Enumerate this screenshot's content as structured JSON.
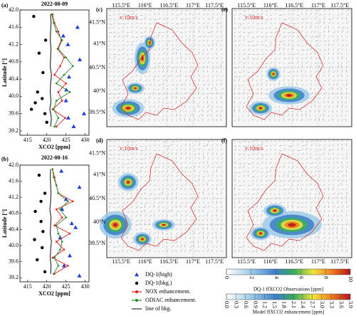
{
  "chart_data": [
    {
      "type": "line",
      "panel": "(a)",
      "title": "2022-08-09",
      "x_label": "XCO2 [ppm]",
      "y_label": "Latitude [°]",
      "xlim": [
        413,
        431
      ],
      "xticks": [
        415,
        420,
        425,
        430
      ],
      "ylim": [
        39.1,
        42.0
      ],
      "yticks": [
        {
          "value": 42,
          "label": "42.0"
        },
        41.6,
        41.2,
        40.8,
        40.4,
        {
          "value": 40,
          "label": "40.0"
        },
        39.6,
        39.2
      ],
      "series": [
        {
          "name": "DQ-1(high)",
          "color": "#1f3fd6",
          "marker": "triangle",
          "line": false,
          "x": [
            424.3,
            428,
            425.5,
            428.6,
            425.8,
            425.1,
            425,
            429.7,
            425.6,
            427
          ],
          "y": [
            41.4,
            41.6,
            41.2,
            40.85,
            40.45,
            40.15,
            39.9,
            39.6,
            39.5,
            39.3
          ]
        },
        {
          "name": "DQ-1(bkg.)",
          "color": "#000000",
          "marker": "circle",
          "line": false,
          "x": [
            416.6,
            418,
            419.7,
            417.6,
            419,
            417,
            416,
            419.5,
            420,
            418.8
          ],
          "y": [
            41.85,
            41.0,
            41.3,
            40.1,
            40.55,
            39.85,
            39.7,
            39.6,
            39.4,
            39.95
          ]
        },
        {
          "name": "NOX enhancement.",
          "color": "#e02020",
          "marker": "dot",
          "line": true,
          "x": [
            422.5,
            424.8,
            421.5,
            424.0,
            423.0,
            425.0,
            422.0,
            423.5,
            424.5,
            422.8,
            423.8,
            423.0,
            422.0,
            421.5
          ],
          "y": [
            39.3,
            39.5,
            39.7,
            39.9,
            40.1,
            40.3,
            40.5,
            40.7,
            40.9,
            41.1,
            41.3,
            41.5,
            41.7,
            41.9
          ]
        },
        {
          "name": "ODIAC enhancement.",
          "color": "#2a8a2a",
          "marker": "dot",
          "line": true,
          "x": [
            422.0,
            423.0,
            421.8,
            422.5,
            426.0,
            422.5,
            424.5,
            426.8,
            425.0,
            423.0,
            424.0,
            422.5,
            421.8,
            421.3
          ],
          "y": [
            39.3,
            39.5,
            39.7,
            39.9,
            40.1,
            40.3,
            40.5,
            40.7,
            40.9,
            41.1,
            41.3,
            41.5,
            41.7,
            41.9
          ]
        },
        {
          "name": "line of bkg.",
          "color": "#333333",
          "marker": "none",
          "line": true,
          "x": [
            421.0,
            421.2,
            420.8,
            421.1,
            420.9,
            421.0,
            421.2,
            420.9,
            421.0,
            421.1,
            420.9,
            421.0,
            421.1,
            421.0
          ],
          "y": [
            39.3,
            39.5,
            39.7,
            39.9,
            40.1,
            40.3,
            40.5,
            40.7,
            40.9,
            41.1,
            41.3,
            41.5,
            41.7,
            41.9
          ]
        }
      ]
    },
    {
      "type": "line",
      "panel": "(b)",
      "title": "2022-08-16",
      "x_label": "XCO2 [ppm]",
      "y_label": "Latitude [°]",
      "xlim": [
        413,
        431
      ],
      "xticks": [
        415,
        420,
        425,
        430
      ],
      "ylim": [
        39.1,
        42.0
      ],
      "yticks": [
        {
          "value": 42,
          "label": "42.0"
        },
        41.6,
        41.2,
        40.8,
        40.4,
        {
          "value": 40,
          "label": "40.0"
        },
        39.6,
        39.2
      ],
      "series": [
        {
          "name": "DQ-1(high)",
          "color": "#1f3fd6",
          "marker": "triangle",
          "line": false,
          "x": [
            428.5,
            424.5,
            426,
            423.5,
            427.5,
            426.5,
            424,
            425,
            428.5,
            423.8
          ],
          "y": [
            39.25,
            39.5,
            39.75,
            40.2,
            40.45,
            40.55,
            40.9,
            41.15,
            41.45,
            41.85
          ]
        },
        {
          "name": "DQ-1(bkg.)",
          "color": "#000000",
          "marker": "circle",
          "line": false,
          "x": [
            419.5,
            417.5,
            418.8,
            416.8,
            419.0,
            418.5,
            417,
            418.5,
            419.5,
            418
          ],
          "y": [
            39.35,
            39.65,
            39.95,
            40.15,
            40.35,
            40.6,
            40.85,
            41.1,
            41.3,
            41.75
          ]
        },
        {
          "name": "NOX enhancement.",
          "color": "#e02020",
          "marker": "dot",
          "line": true,
          "x": [
            422.0,
            425.5,
            421.5,
            424.5,
            422.5,
            426.0,
            422.0,
            424.0,
            422.5,
            426.8,
            423.0,
            422.5,
            422.0,
            421.5
          ],
          "y": [
            39.3,
            39.5,
            39.7,
            39.9,
            40.1,
            40.3,
            40.5,
            40.7,
            40.9,
            41.1,
            41.3,
            41.5,
            41.7,
            41.9
          ]
        },
        {
          "name": "ODIAC enhancement.",
          "color": "#2a8a2a",
          "marker": "dot",
          "line": true,
          "x": [
            421.8,
            423.0,
            422.0,
            423.5,
            424.0,
            423.0,
            422.5,
            425.0,
            423.5,
            425.5,
            423.0,
            422.5,
            421.8,
            421.5
          ],
          "y": [
            39.3,
            39.5,
            39.7,
            39.9,
            40.1,
            40.3,
            40.5,
            40.7,
            40.9,
            41.1,
            41.3,
            41.5,
            41.7,
            41.9
          ]
        },
        {
          "name": "line of bkg.",
          "color": "#333333",
          "marker": "none",
          "line": true,
          "x": [
            421.0,
            421.1,
            420.9,
            421.0,
            421.2,
            420.9,
            421.0,
            421.1,
            420.8,
            421.0,
            421.1,
            421.0,
            420.9,
            421.0
          ],
          "y": [
            39.3,
            39.5,
            39.7,
            39.9,
            40.1,
            40.3,
            40.5,
            40.7,
            40.9,
            41.1,
            41.3,
            41.5,
            41.7,
            41.9
          ]
        }
      ]
    }
  ],
  "maps": {
    "panels": [
      {
        "label": "(c)",
        "wind": "v:10m/s"
      },
      {
        "label": "(e)",
        "wind": "v:10m/s"
      },
      {
        "label": "(d)",
        "wind": "v:10m/s"
      },
      {
        "label": "(f)",
        "wind": "v:10m/s"
      }
    ],
    "lon_ticks": [
      "115.5°E",
      "116°E",
      "116.5°E",
      "117°E",
      "117.5°E"
    ],
    "lat_ticks": [
      "41.5°N",
      "41°N",
      "40.5°N",
      "40°N",
      "39.5°N"
    ]
  },
  "colorbars": [
    {
      "label": "DQ-1 ffXCO2 Observations [ppm]",
      "ticks": [
        "0",
        "2",
        "4",
        "6",
        "8",
        "10"
      ]
    },
    {
      "label": "Model ffXCO2 enhancement [ppm]",
      "ticks": [
        "0.0",
        "0.3",
        "0.6",
        "0.9",
        "1.2",
        "1.5",
        "1.8",
        "2.1",
        "2.4",
        "2.7",
        "3.0",
        "3.3",
        "3.6",
        "3.9"
      ]
    }
  ]
}
